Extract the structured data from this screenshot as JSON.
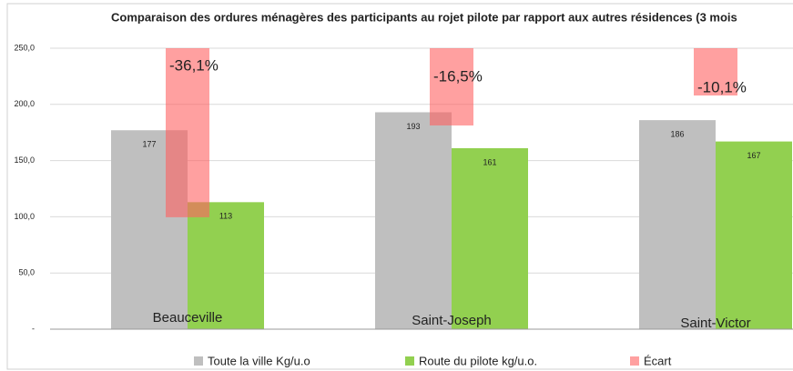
{
  "chart_data": {
    "type": "bar",
    "title": "Comparaison des ordures ménagères des participants au rojet pilote par rapport aux autres résidences (3 mois",
    "categories": [
      "Beauceville",
      "Saint-Joseph",
      "Saint-Victor"
    ],
    "series": [
      {
        "name": "Toute la ville Kg/u.o",
        "color": "#bfbfbf",
        "values": [
          177,
          193,
          186
        ]
      },
      {
        "name": "Route du pilote kg/u.o.",
        "color": "#92d050",
        "values": [
          113,
          161,
          167
        ]
      },
      {
        "name": "Écart",
        "color": "#ff6060",
        "axis": "y2",
        "values": [
          -36.1,
          -16.5,
          -10.1
        ],
        "value_labels": [
          "-36,1%",
          "-16,5%",
          "-10,1%"
        ]
      }
    ],
    "ylim": [
      0,
      250
    ],
    "yticks": [
      {
        "value": 0,
        "label": "-"
      },
      {
        "value": 50,
        "label": "50,0"
      },
      {
        "value": 100,
        "label": "100,0"
      },
      {
        "value": 150,
        "label": "150,0"
      },
      {
        "value": 200,
        "label": "200,0"
      },
      {
        "value": 250,
        "label": "250,0"
      }
    ],
    "y2lim": [
      -60,
      0
    ],
    "grid": true
  }
}
